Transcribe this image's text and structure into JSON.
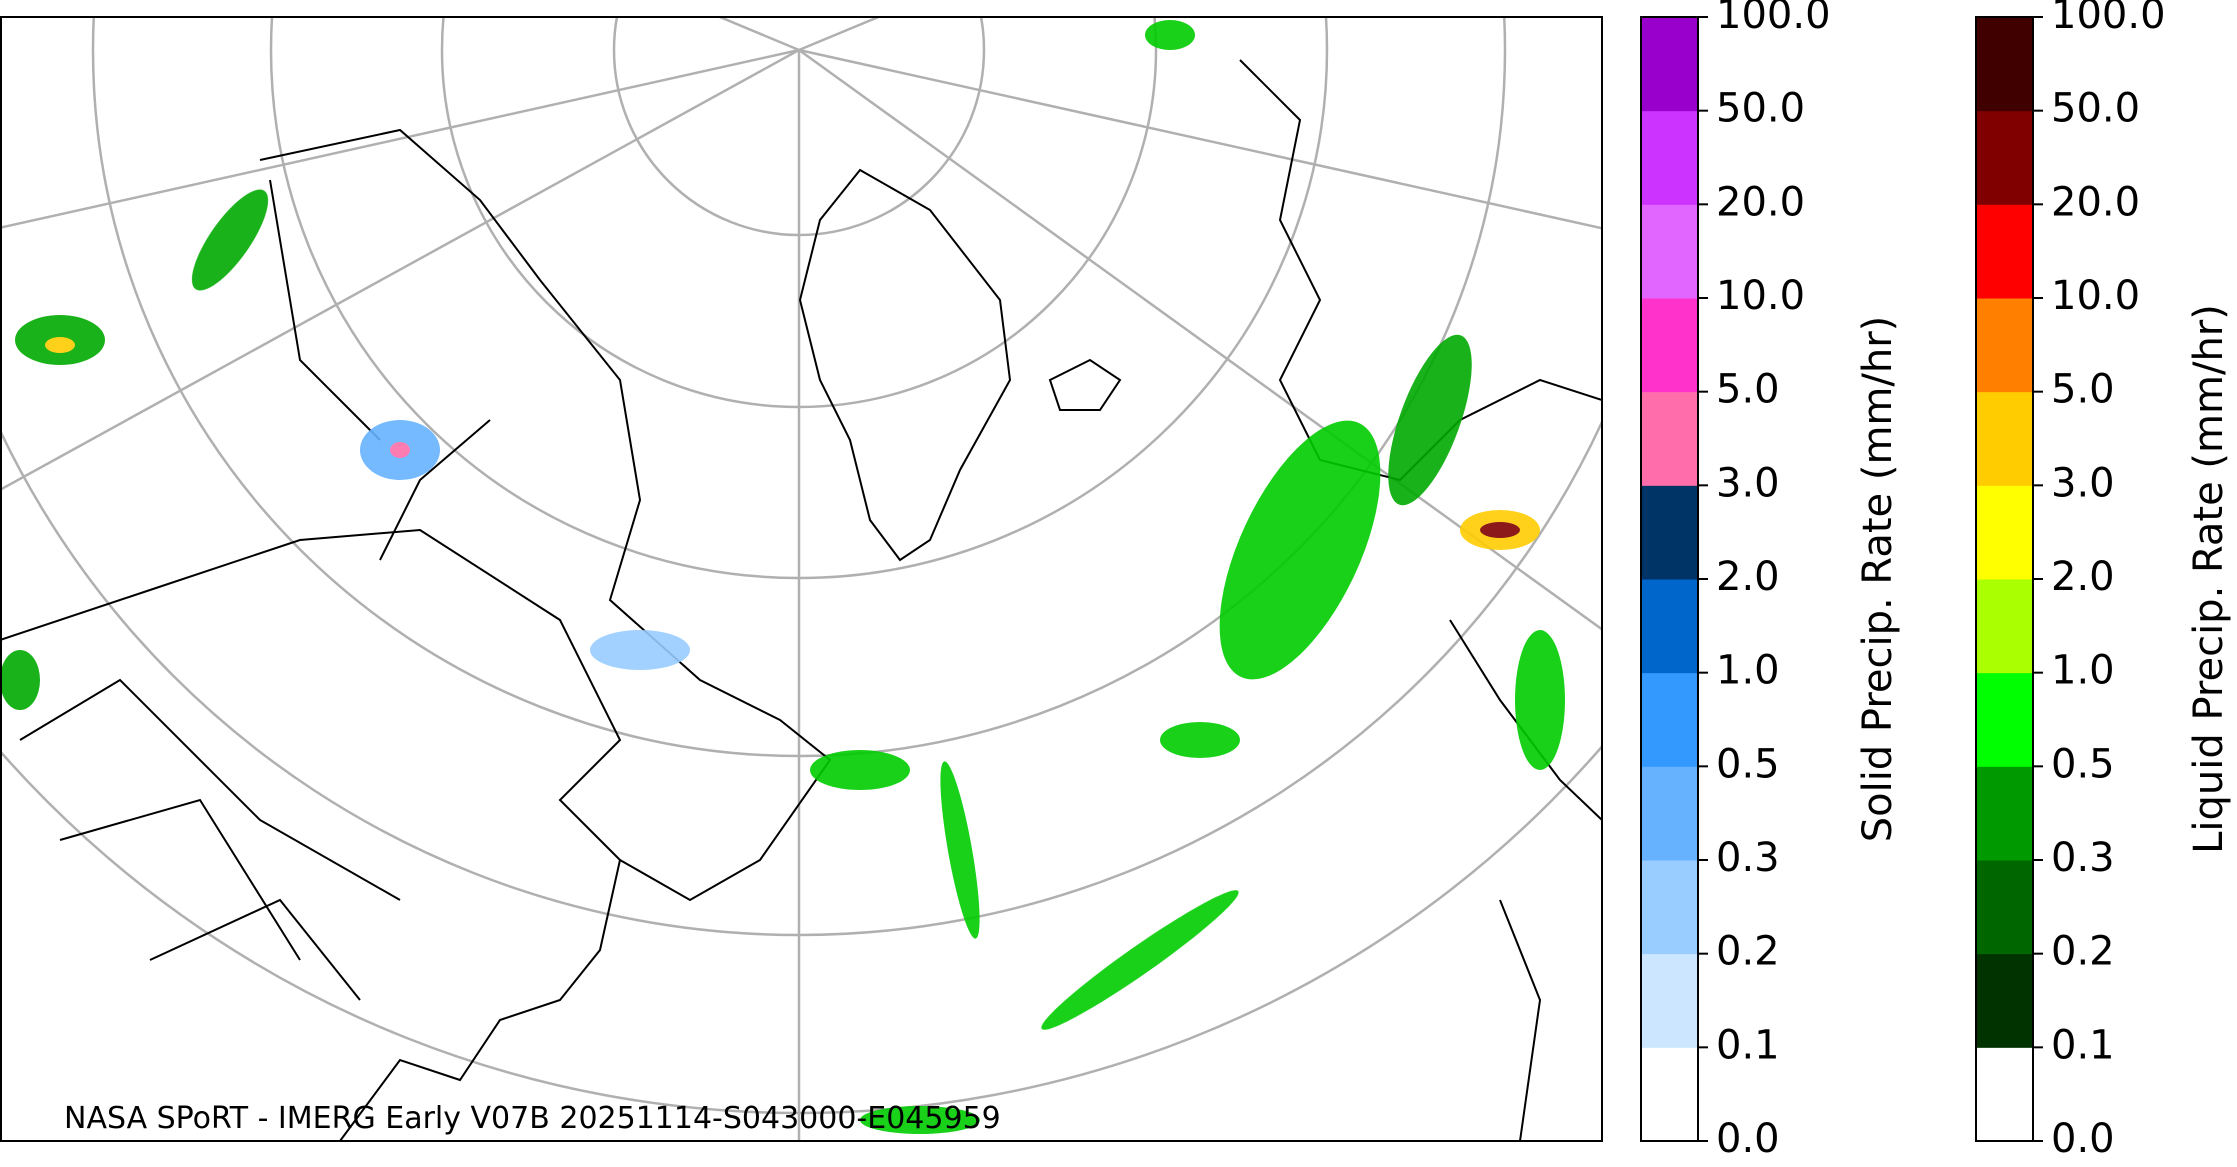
{
  "caption": "NASA SPoRT - IMERG Early V07B 20251114-S043000-E045959",
  "colorbars": [
    {
      "label": "Solid Precip. Rate (mm/hr)",
      "colors": [
        "#ffffff",
        "#cce6ff",
        "#99ccff",
        "#66b2ff",
        "#3399ff",
        "#0066cc",
        "#003366",
        "#ff6eaa",
        "#ff33cc",
        "#e066ff",
        "#cc33ff",
        "#9900cc"
      ],
      "ticks": [
        {
          "value": 0,
          "label": "0.0"
        },
        {
          "value": 0.1,
          "label": "0.1"
        },
        {
          "value": 0.2,
          "label": "0.2"
        },
        {
          "value": 0.3,
          "label": "0.3"
        },
        {
          "value": 0.5,
          "label": "0.5"
        },
        {
          "value": 1,
          "label": "1.0"
        },
        {
          "value": 2,
          "label": "2.0"
        },
        {
          "value": 3,
          "label": "3.0"
        },
        {
          "value": 5,
          "label": "5.0"
        },
        {
          "value": 10,
          "label": "10.0"
        },
        {
          "value": 20,
          "label": "20.0"
        },
        {
          "value": 50,
          "label": "50.0"
        },
        {
          "value": 100,
          "label": "100.0"
        }
      ]
    },
    {
      "label": "Liquid Precip. Rate (mm/hr)",
      "colors": [
        "#ffffff",
        "#003300",
        "#006600",
        "#009900",
        "#00ff00",
        "#aaff00",
        "#ffff00",
        "#ffcc00",
        "#ff8000",
        "#ff0000",
        "#800000",
        "#400000"
      ],
      "ticks": [
        {
          "value": 0,
          "label": "0.0"
        },
        {
          "value": 0.1,
          "label": "0.1"
        },
        {
          "value": 0.2,
          "label": "0.2"
        },
        {
          "value": 0.3,
          "label": "0.3"
        },
        {
          "value": 0.5,
          "label": "0.5"
        },
        {
          "value": 1,
          "label": "1.0"
        },
        {
          "value": 2,
          "label": "2.0"
        },
        {
          "value": 3,
          "label": "3.0"
        },
        {
          "value": 5,
          "label": "5.0"
        },
        {
          "value": 10,
          "label": "10.0"
        },
        {
          "value": 20,
          "label": "20.0"
        },
        {
          "value": 50,
          "label": "50.0"
        },
        {
          "value": 100,
          "label": "100.0"
        }
      ]
    }
  ]
}
